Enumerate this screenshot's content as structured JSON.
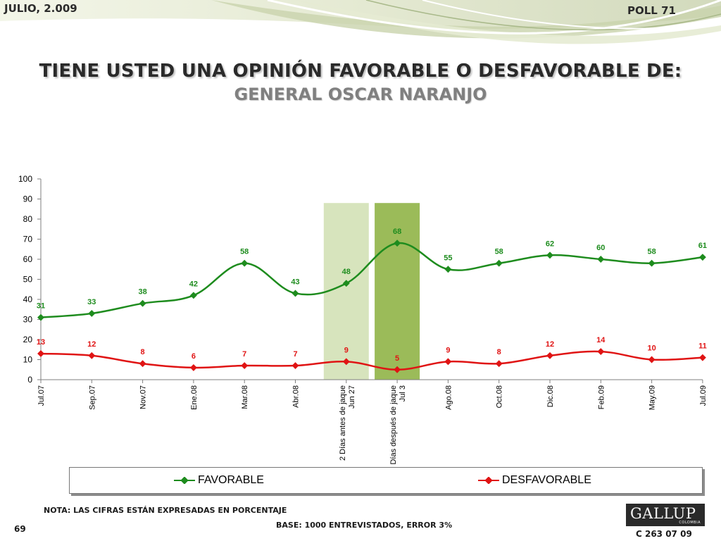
{
  "header": {
    "date": "JULIO, 2.009",
    "poll": "POLL 71"
  },
  "title": "TIENE USTED UNA OPINIÓN FAVORABLE O DESFAVORABLE DE:",
  "subtitle": "GENERAL OSCAR NARANJO",
  "footer": {
    "note": "NOTA: LAS CIFRAS ESTÁN EXPRESADAS EN PORCENTAJE",
    "base": "BASE: 1000 ENTREVISTADOS, ERROR 3%",
    "page": "69",
    "code": "C 263 07 09",
    "logo": "GALLUP",
    "logo_sub": "COLOMBIA"
  },
  "colors": {
    "favorable": "#1e8c1e",
    "desfavorable": "#e01414",
    "band_light": "#d7e4bd",
    "band_dark": "#9bbb59"
  },
  "chart_data": {
    "type": "line",
    "categories": [
      "Jul.07",
      "Sep.07",
      "Nov.07",
      "Ene.08",
      "Mar.08",
      "Abr.08",
      "2 Días antes de jaque Jun 27",
      "2 Días después de jaque Jul 3",
      "Ago.08",
      "Oct.08",
      "Dic.08",
      "Feb.09",
      "May.09",
      "Jul.09"
    ],
    "series": [
      {
        "name": "FAVORABLE",
        "color": "#1e8c1e",
        "values": [
          31,
          33,
          38,
          42,
          58,
          43,
          48,
          68,
          55,
          58,
          62,
          60,
          58,
          61
        ]
      },
      {
        "name": "DESFAVORABLE",
        "color": "#e01414",
        "values": [
          13,
          12,
          8,
          6,
          7,
          7,
          9,
          5,
          9,
          8,
          12,
          14,
          10,
          11
        ]
      }
    ],
    "yticks": [
      0,
      10,
      20,
      30,
      40,
      50,
      60,
      70,
      80,
      90,
      100
    ],
    "ylim": [
      0,
      100
    ],
    "highlight_bands": [
      {
        "category": "2 Días antes de jaque Jun 27",
        "color": "#d7e4bd",
        "top": 88
      },
      {
        "category": "2 Días después de jaque Jul 3",
        "color": "#9bbb59",
        "top": 88
      }
    ],
    "legend_position": "bottom",
    "grid": false
  }
}
